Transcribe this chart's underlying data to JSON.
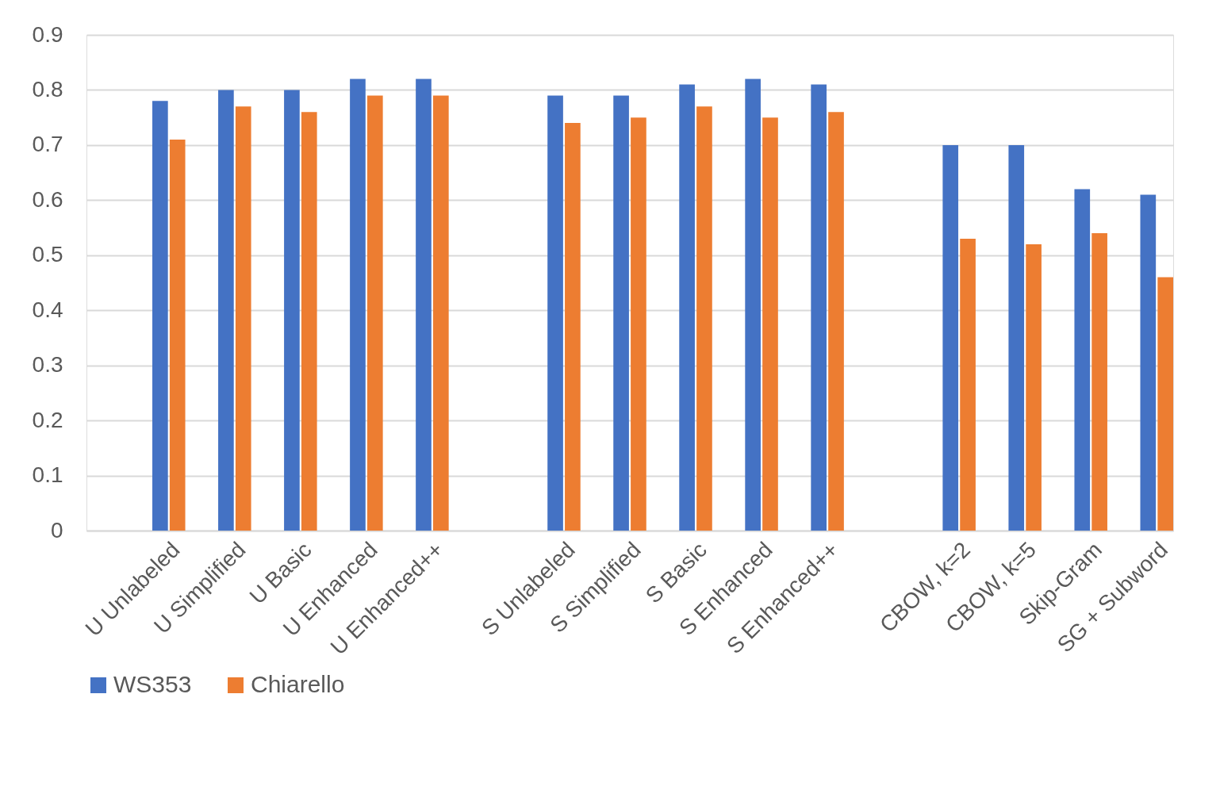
{
  "chart_data": {
    "type": "bar",
    "categories": [
      null,
      "U Unlabeled",
      "U Simplified",
      "U Basic",
      "U Enhanced",
      "U Enhanced++",
      null,
      "S Unlabeled",
      "S Simplified",
      "S Basic",
      "S Enhanced",
      "S Enhanced++",
      null,
      "CBOW, k=2",
      "CBOW, k=5",
      "Skip-Gram",
      "SG + Subword"
    ],
    "series": [
      {
        "name": "WS353",
        "color": "#4472c4",
        "values": [
          null,
          0.78,
          0.8,
          0.8,
          0.82,
          0.82,
          null,
          0.79,
          0.79,
          0.81,
          0.82,
          0.81,
          null,
          0.7,
          0.7,
          0.62,
          0.61
        ]
      },
      {
        "name": "Chiarello",
        "color": "#ed7d31",
        "values": [
          null,
          0.71,
          0.77,
          0.76,
          0.79,
          0.79,
          null,
          0.74,
          0.75,
          0.77,
          0.75,
          0.76,
          null,
          0.53,
          0.52,
          0.54,
          0.46
        ]
      }
    ],
    "ylim": [
      0,
      0.9
    ],
    "yticks": [
      0,
      0.1,
      0.2,
      0.3,
      0.4,
      0.5,
      0.6,
      0.7,
      0.8,
      0.9
    ],
    "grid": "y",
    "legend": "bottom"
  }
}
